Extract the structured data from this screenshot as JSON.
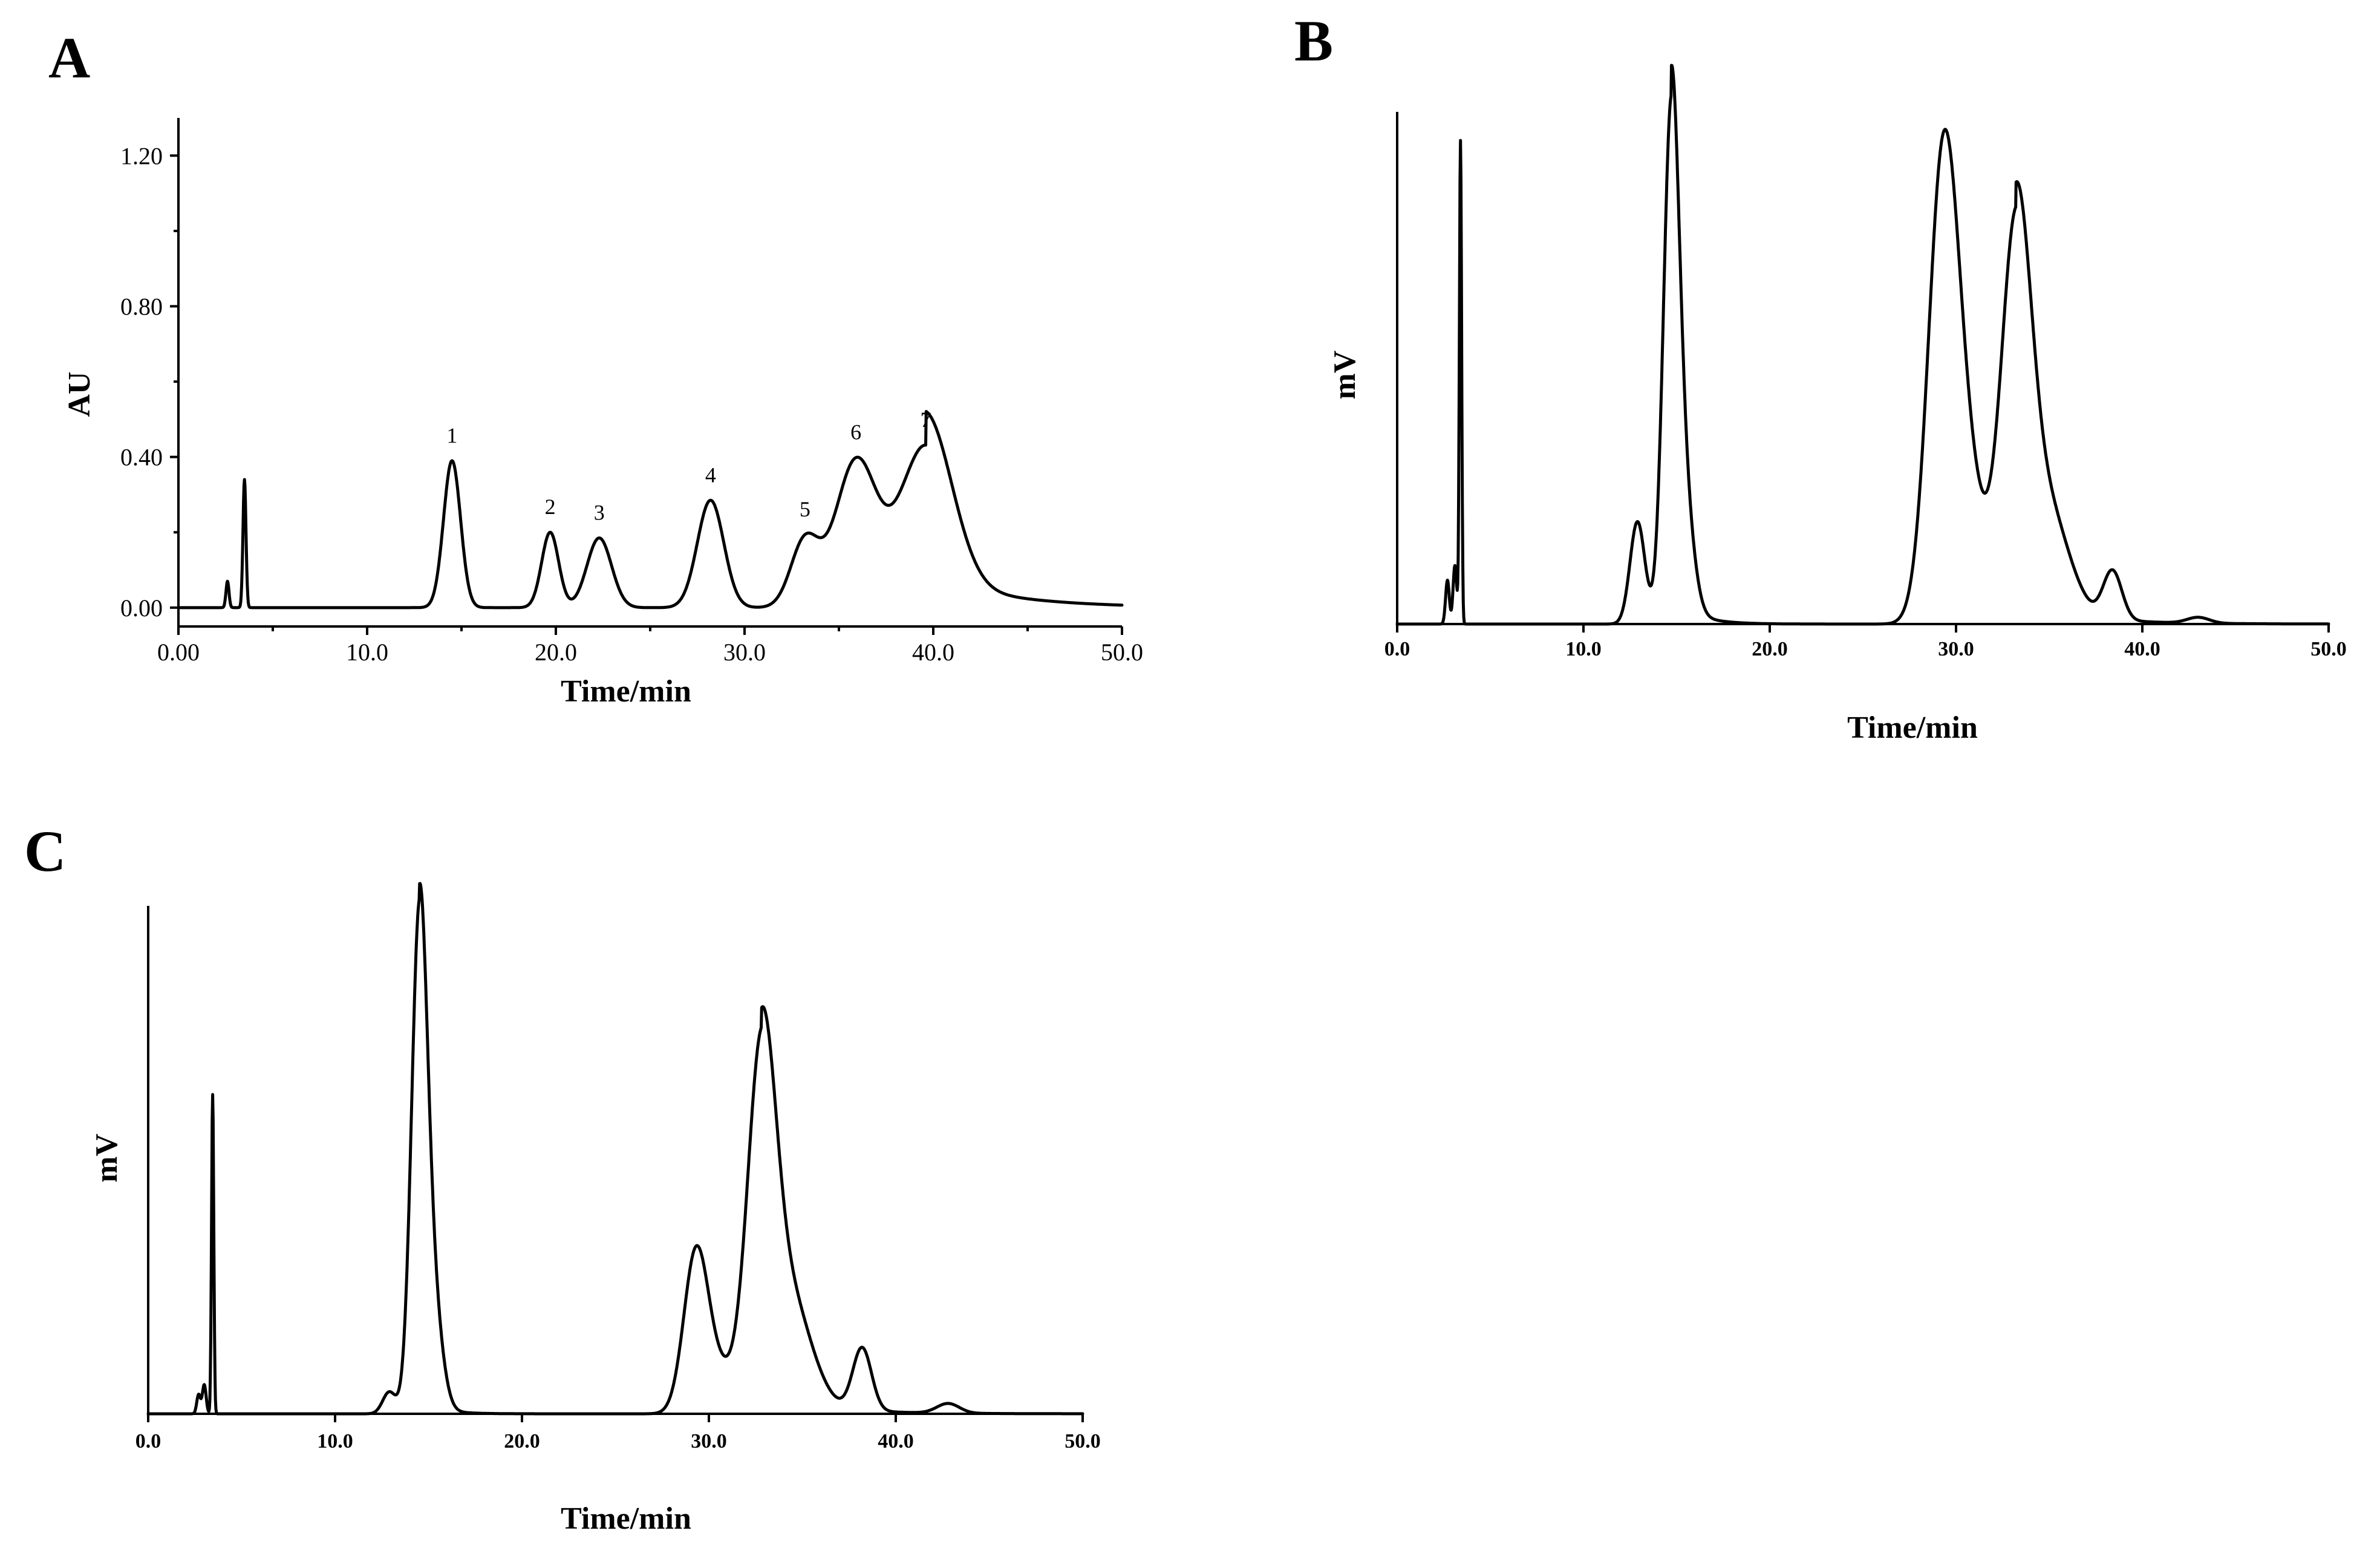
{
  "chart_data": [
    {
      "panel": "A",
      "type": "line",
      "xlabel": "Time/min",
      "ylabel": "AU",
      "xlim": [
        0,
        50
      ],
      "ylim": [
        -0.05,
        1.3
      ],
      "x_ticks": [
        "0.00",
        "10.0",
        "20.0",
        "30.0",
        "40.0",
        "50.0"
      ],
      "y_ticks": [
        "0.00",
        "0.40",
        "0.80",
        "1.20"
      ],
      "baseline": 0.0,
      "peaks": [
        {
          "t": 2.6,
          "h": 0.07,
          "w": 0.08,
          "label": ""
        },
        {
          "t": 3.5,
          "h": 0.34,
          "w": 0.08,
          "label": ""
        },
        {
          "t": 14.5,
          "h": 0.39,
          "w": 0.45,
          "label": "1"
        },
        {
          "t": 19.7,
          "h": 0.2,
          "w": 0.45,
          "label": "2"
        },
        {
          "t": 22.3,
          "h": 0.185,
          "w": 0.65,
          "label": "3"
        },
        {
          "t": 28.2,
          "h": 0.285,
          "w": 0.7,
          "label": "4"
        },
        {
          "t": 33.2,
          "h": 0.175,
          "w": 0.75,
          "label": "5"
        },
        {
          "t": 35.9,
          "h": 0.385,
          "w": 1.1,
          "label": "6"
        },
        {
          "t": 39.6,
          "h": 0.43,
          "w": 1.4,
          "label": "7"
        }
      ],
      "tails": [
        {
          "t": 39.6,
          "h": 0.09,
          "decay": 4.0
        }
      ]
    },
    {
      "panel": "B",
      "type": "line",
      "xlabel": "Time/min",
      "ylabel": "mV",
      "xlim": [
        0,
        50
      ],
      "ylim": [
        0,
        1.05
      ],
      "x_ticks": [
        "0.0",
        "10.0",
        "20.0",
        "30.0",
        "40.0",
        "50.0"
      ],
      "y_ticks": [],
      "baseline": 0.0,
      "peaks": [
        {
          "t": 2.7,
          "h": 0.09,
          "w": 0.1,
          "label": ""
        },
        {
          "t": 3.1,
          "h": 0.12,
          "w": 0.1,
          "label": ""
        },
        {
          "t": 3.4,
          "h": 0.99,
          "w": 0.06,
          "label": ""
        },
        {
          "t": 12.9,
          "h": 0.21,
          "w": 0.4,
          "label": ""
        },
        {
          "t": 14.7,
          "h": 1.0,
          "w": 0.42,
          "label": ""
        },
        {
          "t": 15.4,
          "h": 0.22,
          "w": 0.5,
          "label": ""
        },
        {
          "t": 29.3,
          "h": 0.91,
          "w": 0.8,
          "label": ""
        },
        {
          "t": 30.6,
          "h": 0.27,
          "w": 0.9,
          "label": ""
        },
        {
          "t": 33.2,
          "h": 0.76,
          "w": 0.8,
          "label": ""
        },
        {
          "t": 34.8,
          "h": 0.22,
          "w": 1.2,
          "label": ""
        },
        {
          "t": 38.4,
          "h": 0.1,
          "w": 0.5,
          "label": ""
        },
        {
          "t": 43.0,
          "h": 0.012,
          "w": 0.6,
          "label": ""
        }
      ],
      "tails": [
        {
          "t": 14.7,
          "h": 0.06,
          "decay": 1.2
        },
        {
          "t": 33.2,
          "h": 0.05,
          "decay": 3.0
        }
      ]
    },
    {
      "panel": "C",
      "type": "line",
      "xlabel": "Time/min",
      "ylabel": "mV",
      "xlim": [
        0,
        50
      ],
      "ylim": [
        0,
        1.05
      ],
      "x_ticks": [
        "0.0",
        "10.0",
        "20.0",
        "30.0",
        "40.0",
        "50.0"
      ],
      "y_ticks": [],
      "baseline": 0.0,
      "peaks": [
        {
          "t": 2.7,
          "h": 0.04,
          "w": 0.1,
          "label": ""
        },
        {
          "t": 3.0,
          "h": 0.06,
          "w": 0.1,
          "label": ""
        },
        {
          "t": 3.45,
          "h": 0.66,
          "w": 0.06,
          "label": ""
        },
        {
          "t": 12.9,
          "h": 0.045,
          "w": 0.35,
          "label": ""
        },
        {
          "t": 14.5,
          "h": 0.98,
          "w": 0.42,
          "label": ""
        },
        {
          "t": 15.2,
          "h": 0.22,
          "w": 0.5,
          "label": ""
        },
        {
          "t": 29.3,
          "h": 0.32,
          "w": 0.65,
          "label": ""
        },
        {
          "t": 30.5,
          "h": 0.08,
          "w": 0.8,
          "label": ""
        },
        {
          "t": 32.8,
          "h": 0.68,
          "w": 0.75,
          "label": ""
        },
        {
          "t": 34.2,
          "h": 0.23,
          "w": 1.2,
          "label": ""
        },
        {
          "t": 38.2,
          "h": 0.13,
          "w": 0.5,
          "label": ""
        },
        {
          "t": 42.8,
          "h": 0.02,
          "w": 0.6,
          "label": ""
        }
      ],
      "tails": [
        {
          "t": 14.5,
          "h": 0.03,
          "decay": 1.0
        },
        {
          "t": 32.8,
          "h": 0.04,
          "decay": 3.0
        }
      ]
    }
  ]
}
